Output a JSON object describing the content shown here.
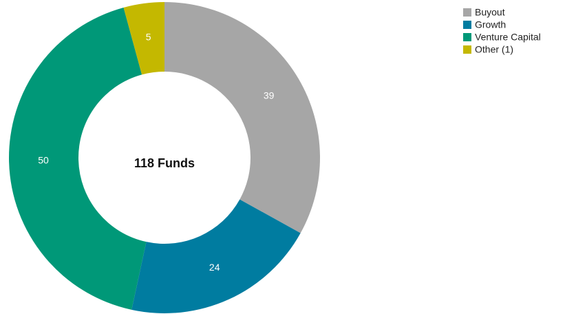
{
  "chart_data": {
    "type": "donut",
    "center_label": "118 Funds",
    "categories": [
      "Buyout",
      "Growth",
      "Venture Capital",
      "Other (1)"
    ],
    "values": [
      39,
      24,
      50,
      5
    ],
    "colors": [
      "#a6a6a6",
      "#007ca0",
      "#009878",
      "#c4b800"
    ],
    "legend": "top-right"
  }
}
